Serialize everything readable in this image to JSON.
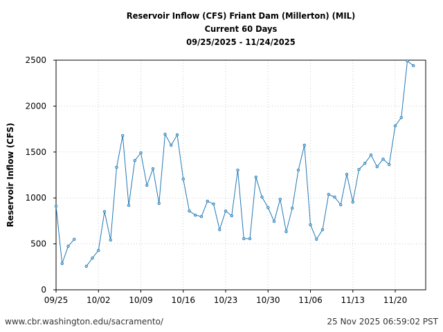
{
  "chart_data": {
    "type": "line",
    "title": [
      "Reservoir Inflow (CFS) Friant Dam (Millerton) (MIL)",
      "Current 60 Days",
      "09/25/2025 - 11/24/2025"
    ],
    "xlabel": "",
    "ylabel": "Reservoir Inflow (CFS)",
    "ylim": [
      0,
      2500
    ],
    "yticks": [
      0,
      500,
      1000,
      1500,
      2000,
      2500
    ],
    "xticks": [
      "09/25",
      "10/02",
      "10/09",
      "10/16",
      "10/23",
      "10/30",
      "11/06",
      "11/13",
      "11/20"
    ],
    "grid": true,
    "color": "#1f77b4",
    "start_date": "09/25",
    "x": [
      "09/25",
      "09/26",
      "09/27",
      "09/28",
      "09/29",
      "09/30",
      "10/01",
      "10/02",
      "10/03",
      "10/04",
      "10/05",
      "10/06",
      "10/07",
      "10/08",
      "10/09",
      "10/10",
      "10/11",
      "10/12",
      "10/13",
      "10/14",
      "10/15",
      "10/16",
      "10/17",
      "10/18",
      "10/19",
      "10/20",
      "10/21",
      "10/22",
      "10/23",
      "10/24",
      "10/25",
      "10/26",
      "10/27",
      "10/28",
      "10/29",
      "10/30",
      "10/31",
      "11/01",
      "11/02",
      "11/03",
      "11/04",
      "11/05",
      "11/06",
      "11/07",
      "11/08",
      "11/09",
      "11/10",
      "11/11",
      "11/12",
      "11/13",
      "11/14",
      "11/15",
      "11/16",
      "11/17",
      "11/18",
      "11/19",
      "11/20",
      "11/21",
      "11/22",
      "11/23"
    ],
    "values": [
      911,
      286,
      474,
      550,
      null,
      256,
      346,
      429,
      851,
      542,
      1333,
      1679,
      919,
      1408,
      1491,
      1137,
      1318,
      941,
      1694,
      1574,
      1687,
      1205,
      858,
      813,
      798,
      964,
      934,
      655,
      858,
      806,
      1303,
      557,
      557,
      1227,
      1009,
      896,
      745,
      986,
      633,
      889,
      1303,
      1574,
      708,
      550,
      655,
      1039,
      1009,
      926,
      1258,
      956,
      1310,
      1378,
      1468,
      1340,
      1423,
      1363,
      1785,
      1875,
      2492,
      2440
    ]
  },
  "footer": {
    "url": "www.cbr.washington.edu/sacramento/",
    "timestamp": "25 Nov 2025 06:59:02 PST"
  }
}
